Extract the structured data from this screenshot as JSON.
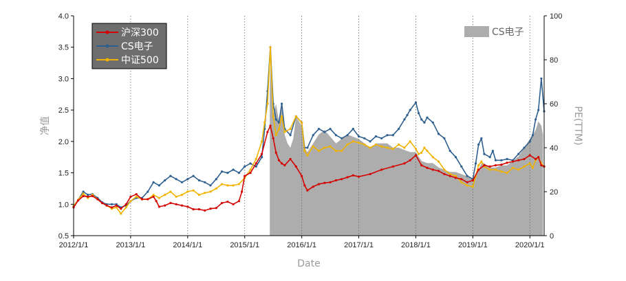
{
  "chart_data": {
    "type": "line",
    "title": "",
    "xlabel": "Date",
    "ylabel": "净值",
    "y2label": "PE(TTM)",
    "x_ticks": [
      "2012/1/1",
      "2013/1/1",
      "2014/1/1",
      "2015/1/1",
      "2016/1/1",
      "2017/1/1",
      "2018/1/1",
      "2019/1/1",
      "2020/1/1"
    ],
    "xlim": [
      "2012-01-01",
      "2020-04-01"
    ],
    "ylim": [
      0.5,
      4.0
    ],
    "y_ticks": [
      "0.5",
      "1.0",
      "1.5",
      "2.0",
      "2.5",
      "3.0",
      "3.5",
      "4.0"
    ],
    "y2lim": [
      0,
      100
    ],
    "y2_ticks": [
      "0",
      "20",
      "40",
      "60",
      "80",
      "100"
    ],
    "grid": "vertical dotted at year ticks",
    "legend_left_placement": "top-left",
    "legend_right_placement": "top-right",
    "colors": {
      "hs300": "#d40000",
      "cs_elec": "#2f5f8f",
      "zz500": "#f0b400",
      "pe_area": "#adadad",
      "legend_bg": "#6e6e6e",
      "grid": "#666666"
    },
    "series": [
      {
        "name": "沪深300",
        "axis": "left",
        "x": [
          2012.0,
          2012.08,
          2012.17,
          2012.25,
          2012.33,
          2012.42,
          2012.5,
          2012.58,
          2012.67,
          2012.75,
          2012.83,
          2012.92,
          2013.0,
          2013.1,
          2013.2,
          2013.3,
          2013.4,
          2013.45,
          2013.5,
          2013.6,
          2013.7,
          2013.8,
          2013.9,
          2014.0,
          2014.1,
          2014.2,
          2014.3,
          2014.4,
          2014.5,
          2014.6,
          2014.7,
          2014.8,
          2014.9,
          2014.95,
          2015.0,
          2015.1,
          2015.2,
          2015.3,
          2015.4,
          2015.45,
          2015.5,
          2015.55,
          2015.6,
          2015.65,
          2015.7,
          2015.8,
          2015.9,
          2016.0,
          2016.05,
          2016.1,
          2016.2,
          2016.3,
          2016.4,
          2016.5,
          2016.6,
          2016.7,
          2016.8,
          2016.9,
          2017.0,
          2017.2,
          2017.4,
          2017.6,
          2017.8,
          2017.9,
          2018.0,
          2018.1,
          2018.2,
          2018.3,
          2018.4,
          2018.5,
          2018.6,
          2018.7,
          2018.8,
          2018.9,
          2019.0,
          2019.1,
          2019.2,
          2019.3,
          2019.4,
          2019.5,
          2019.6,
          2019.7,
          2019.8,
          2019.9,
          2020.0,
          2020.1,
          2020.15,
          2020.2,
          2020.25
        ],
        "values": [
          0.95,
          1.06,
          1.13,
          1.12,
          1.13,
          1.08,
          1.02,
          0.98,
          0.95,
          0.98,
          0.93,
          1.0,
          1.12,
          1.16,
          1.08,
          1.08,
          1.12,
          1.05,
          0.96,
          0.98,
          1.02,
          1.0,
          0.98,
          0.96,
          0.92,
          0.92,
          0.9,
          0.93,
          0.94,
          1.02,
          1.04,
          1.0,
          1.05,
          1.2,
          1.45,
          1.5,
          1.65,
          1.8,
          2.15,
          2.25,
          2.05,
          1.82,
          1.7,
          1.65,
          1.62,
          1.72,
          1.6,
          1.45,
          1.3,
          1.22,
          1.28,
          1.32,
          1.34,
          1.35,
          1.38,
          1.4,
          1.43,
          1.46,
          1.44,
          1.48,
          1.55,
          1.6,
          1.65,
          1.7,
          1.78,
          1.62,
          1.58,
          1.55,
          1.53,
          1.48,
          1.45,
          1.42,
          1.4,
          1.35,
          1.38,
          1.55,
          1.62,
          1.6,
          1.62,
          1.63,
          1.66,
          1.68,
          1.7,
          1.72,
          1.78,
          1.72,
          1.75,
          1.62,
          1.6
        ]
      },
      {
        "name": "CS电子",
        "axis": "left",
        "x": [
          2012.0,
          2012.08,
          2012.17,
          2012.25,
          2012.33,
          2012.42,
          2012.5,
          2012.58,
          2012.67,
          2012.75,
          2012.83,
          2012.92,
          2013.0,
          2013.1,
          2013.2,
          2013.3,
          2013.4,
          2013.5,
          2013.6,
          2013.7,
          2013.8,
          2013.9,
          2014.0,
          2014.1,
          2014.2,
          2014.3,
          2014.4,
          2014.5,
          2014.6,
          2014.7,
          2014.8,
          2014.9,
          2015.0,
          2015.1,
          2015.2,
          2015.3,
          2015.35,
          2015.4,
          2015.45,
          2015.5,
          2015.55,
          2015.6,
          2015.65,
          2015.7,
          2015.8,
          2015.9,
          2016.0,
          2016.05,
          2016.1,
          2016.2,
          2016.3,
          2016.4,
          2016.5,
          2016.6,
          2016.7,
          2016.8,
          2016.9,
          2017.0,
          2017.1,
          2017.2,
          2017.3,
          2017.4,
          2017.5,
          2017.6,
          2017.7,
          2017.8,
          2017.85,
          2017.9,
          2018.0,
          2018.05,
          2018.1,
          2018.15,
          2018.2,
          2018.3,
          2018.4,
          2018.5,
          2018.6,
          2018.7,
          2018.8,
          2018.9,
          2019.0,
          2019.05,
          2019.1,
          2019.15,
          2019.2,
          2019.3,
          2019.35,
          2019.4,
          2019.5,
          2019.6,
          2019.7,
          2019.8,
          2019.9,
          2020.0,
          2020.05,
          2020.1,
          2020.15,
          2020.2,
          2020.25
        ],
        "values": [
          0.97,
          1.07,
          1.2,
          1.15,
          1.16,
          1.1,
          1.03,
          1.0,
          1.0,
          1.0,
          0.95,
          0.98,
          1.05,
          1.1,
          1.1,
          1.2,
          1.35,
          1.3,
          1.38,
          1.45,
          1.4,
          1.35,
          1.4,
          1.45,
          1.38,
          1.35,
          1.3,
          1.4,
          1.52,
          1.5,
          1.55,
          1.5,
          1.6,
          1.65,
          1.6,
          1.75,
          2.2,
          2.8,
          3.5,
          2.6,
          2.35,
          2.3,
          2.6,
          2.2,
          2.1,
          2.4,
          2.3,
          1.9,
          1.9,
          2.1,
          2.2,
          2.15,
          2.2,
          2.1,
          2.05,
          2.1,
          2.2,
          2.08,
          2.05,
          2.0,
          2.08,
          2.05,
          2.1,
          2.1,
          2.2,
          2.35,
          2.42,
          2.5,
          2.62,
          2.45,
          2.35,
          2.3,
          2.38,
          2.3,
          2.12,
          2.05,
          1.85,
          1.75,
          1.6,
          1.45,
          1.4,
          1.65,
          1.95,
          2.05,
          1.8,
          1.75,
          1.85,
          1.7,
          1.7,
          1.72,
          1.7,
          1.8,
          1.9,
          2.0,
          2.1,
          2.35,
          2.5,
          3.0,
          2.48
        ]
      },
      {
        "name": "中证500",
        "axis": "left",
        "x": [
          2012.0,
          2012.08,
          2012.17,
          2012.25,
          2012.33,
          2012.42,
          2012.5,
          2012.58,
          2012.67,
          2012.75,
          2012.83,
          2012.92,
          2013.0,
          2013.1,
          2013.2,
          2013.3,
          2013.4,
          2013.5,
          2013.6,
          2013.7,
          2013.8,
          2013.9,
          2014.0,
          2014.1,
          2014.2,
          2014.3,
          2014.4,
          2014.5,
          2014.6,
          2014.7,
          2014.8,
          2014.9,
          2015.0,
          2015.1,
          2015.2,
          2015.3,
          2015.35,
          2015.4,
          2015.45,
          2015.5,
          2015.55,
          2015.6,
          2015.65,
          2015.7,
          2015.8,
          2015.9,
          2016.0,
          2016.05,
          2016.1,
          2016.2,
          2016.3,
          2016.4,
          2016.5,
          2016.6,
          2016.7,
          2016.8,
          2016.9,
          2017.0,
          2017.1,
          2017.2,
          2017.3,
          2017.4,
          2017.5,
          2017.6,
          2017.7,
          2017.8,
          2017.9,
          2018.0,
          2018.05,
          2018.1,
          2018.15,
          2018.2,
          2018.3,
          2018.4,
          2018.5,
          2018.6,
          2018.7,
          2018.8,
          2018.9,
          2019.0,
          2019.05,
          2019.1,
          2019.15,
          2019.2,
          2019.3,
          2019.4,
          2019.5,
          2019.6,
          2019.7,
          2019.8,
          2019.9,
          2020.0,
          2020.05,
          2020.1,
          2020.15,
          2020.2,
          2020.25
        ],
        "values": [
          0.97,
          1.07,
          1.17,
          1.1,
          1.15,
          1.08,
          1.02,
          0.98,
          0.93,
          0.95,
          0.85,
          0.95,
          1.05,
          1.12,
          1.08,
          1.08,
          1.15,
          1.1,
          1.15,
          1.2,
          1.12,
          1.15,
          1.2,
          1.22,
          1.15,
          1.18,
          1.2,
          1.25,
          1.32,
          1.3,
          1.3,
          1.32,
          1.42,
          1.55,
          1.72,
          2.0,
          2.3,
          2.6,
          3.5,
          2.4,
          2.1,
          2.2,
          2.4,
          2.15,
          2.2,
          2.4,
          2.3,
          1.85,
          1.78,
          1.92,
          1.85,
          1.9,
          1.92,
          1.85,
          1.85,
          1.95,
          2.0,
          1.98,
          1.95,
          1.9,
          1.95,
          1.92,
          1.9,
          1.88,
          1.95,
          1.9,
          2.0,
          1.88,
          1.8,
          1.82,
          1.9,
          1.85,
          1.75,
          1.68,
          1.55,
          1.48,
          1.45,
          1.35,
          1.3,
          1.28,
          1.45,
          1.62,
          1.68,
          1.6,
          1.55,
          1.55,
          1.52,
          1.5,
          1.58,
          1.55,
          1.6,
          1.65,
          1.58,
          1.7,
          1.75,
          1.65,
          1.6
        ]
      },
      {
        "name": "CS电子",
        "axis": "right",
        "kind": "area",
        "x": [
          2015.44,
          2015.46,
          2015.5,
          2015.55,
          2015.6,
          2015.65,
          2015.7,
          2015.75,
          2015.8,
          2015.85,
          2015.9,
          2015.95,
          2016.0,
          2016.05,
          2016.1,
          2016.2,
          2016.3,
          2016.4,
          2016.5,
          2016.6,
          2016.7,
          2016.8,
          2016.9,
          2017.0,
          2017.1,
          2017.2,
          2017.3,
          2017.4,
          2017.5,
          2017.6,
          2017.7,
          2017.8,
          2017.9,
          2018.0,
          2018.1,
          2018.2,
          2018.3,
          2018.4,
          2018.5,
          2018.6,
          2018.7,
          2018.8,
          2018.9,
          2019.0,
          2019.1,
          2019.15,
          2019.2,
          2019.3,
          2019.4,
          2019.5,
          2019.6,
          2019.7,
          2019.8,
          2019.9,
          2020.0,
          2020.05,
          2020.1,
          2020.15,
          2020.2,
          2020.23
        ],
        "values": [
          66,
          88,
          55,
          60,
          52,
          58,
          46,
          42,
          40,
          44,
          54,
          52,
          50,
          40,
          38,
          42,
          46,
          48,
          45,
          42,
          44,
          46,
          45,
          44,
          42,
          40,
          42,
          42,
          42,
          40,
          40,
          39,
          38,
          38,
          34,
          33,
          33,
          31,
          30,
          29,
          29,
          28,
          27,
          26,
          30,
          33,
          33,
          31,
          31,
          32,
          32,
          34,
          36,
          40,
          44,
          46,
          48,
          52,
          50,
          46
        ]
      }
    ]
  }
}
